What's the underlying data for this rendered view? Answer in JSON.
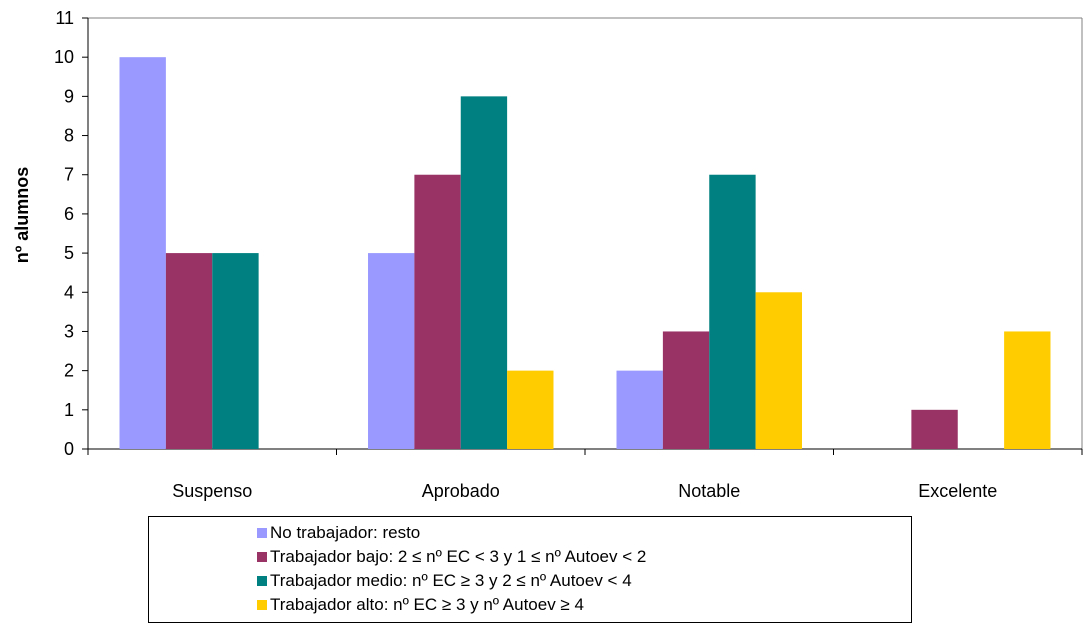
{
  "chart_data": {
    "type": "bar",
    "title": "",
    "xlabel": "",
    "ylabel": "nº alumnos",
    "ylim": [
      0,
      11
    ],
    "yticks": [
      "0",
      "1",
      "2",
      "3",
      "4",
      "5",
      "6",
      "7",
      "8",
      "9",
      "10",
      "11"
    ],
    "categories": [
      "Suspenso",
      "Aprobado",
      "Notable",
      "Excelente"
    ],
    "series": [
      {
        "name": "No trabajador: resto",
        "color": "#9999ff",
        "values": [
          10,
          5,
          2,
          0
        ]
      },
      {
        "name": "Trabajador bajo: 2 ≤ nº EC < 3 y 1 ≤ nº Autoev < 2",
        "color": "#993366",
        "values": [
          5,
          7,
          3,
          1
        ]
      },
      {
        "name": "Trabajador medio: nº EC ≥ 3 y 2 ≤ nº Autoev < 4",
        "color": "#008080",
        "values": [
          5,
          9,
          7,
          0
        ]
      },
      {
        "name": "Trabajador alto: nº EC ≥ 3 y nº Autoev ≥ 4",
        "color": "#ffcc00",
        "values": [
          0,
          2,
          4,
          3
        ]
      }
    ],
    "grid": false,
    "legend_position": "bottom"
  }
}
